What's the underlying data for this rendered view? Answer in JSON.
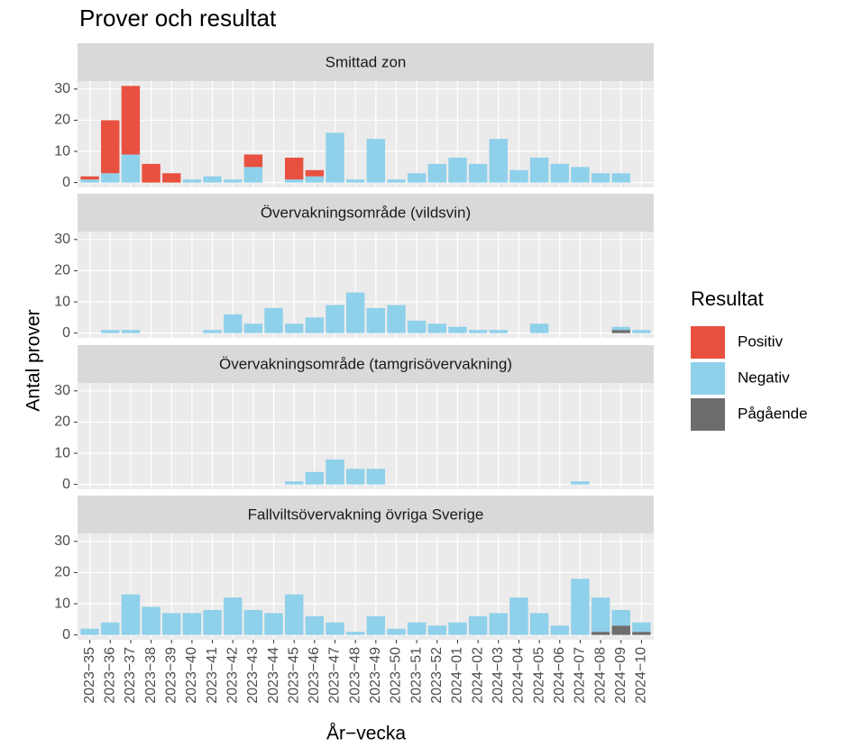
{
  "title": "Prover och resultat",
  "y_label": "Antal prover",
  "legend_title": "Resultat",
  "chart_data": [
    {
      "type": "bar",
      "stacked": true,
      "title": "Smittad zon",
      "ylim": [
        -1.55,
        32.55
      ],
      "yticks": [
        0,
        10,
        20,
        30
      ],
      "grid": true,
      "series": [
        {
          "name": "Positiv",
          "color": "#e8513f",
          "values": [
            1,
            17,
            22,
            6,
            3,
            0,
            0,
            0,
            4,
            0,
            7,
            2,
            0,
            0,
            0,
            0,
            0,
            0,
            0,
            0,
            0,
            0,
            0,
            0,
            0,
            0,
            0,
            0
          ]
        },
        {
          "name": "Negativ",
          "color": "#8fd0ea",
          "values": [
            1,
            3,
            9,
            0,
            0,
            1,
            2,
            1,
            5,
            0,
            1,
            2,
            16,
            1,
            14,
            1,
            3,
            6,
            8,
            6,
            14,
            4,
            8,
            6,
            5,
            3,
            3,
            0
          ]
        },
        {
          "name": "Pågående",
          "color": "#6d6d6d",
          "values": [
            0,
            0,
            0,
            0,
            0,
            0,
            0,
            0,
            0,
            0,
            0,
            0,
            0,
            0,
            0,
            0,
            0,
            0,
            0,
            0,
            0,
            0,
            0,
            0,
            0,
            0,
            0,
            0
          ]
        }
      ]
    },
    {
      "type": "bar",
      "stacked": true,
      "title": "Övervakningsområde (vildsvin)",
      "ylim": [
        -1.55,
        32.55
      ],
      "yticks": [
        0,
        10,
        20,
        30
      ],
      "grid": true,
      "series": [
        {
          "name": "Positiv",
          "color": "#e8513f",
          "values": [
            0,
            0,
            0,
            0,
            0,
            0,
            0,
            0,
            0,
            0,
            0,
            0,
            0,
            0,
            0,
            0,
            0,
            0,
            0,
            0,
            0,
            0,
            0,
            0,
            0,
            0,
            0,
            0
          ]
        },
        {
          "name": "Negativ",
          "color": "#8fd0ea",
          "values": [
            0,
            1,
            1,
            0,
            0,
            0,
            1,
            6,
            3,
            8,
            3,
            5,
            9,
            13,
            8,
            9,
            4,
            3,
            2,
            1,
            1,
            0,
            3,
            0,
            0,
            0,
            1,
            1
          ]
        },
        {
          "name": "Pågående",
          "color": "#6d6d6d",
          "values": [
            0,
            0,
            0,
            0,
            0,
            0,
            0,
            0,
            0,
            0,
            0,
            0,
            0,
            0,
            0,
            0,
            0,
            0,
            0,
            0,
            0,
            0,
            0,
            0,
            0,
            0,
            1,
            0
          ]
        }
      ]
    },
    {
      "type": "bar",
      "stacked": true,
      "title": "Övervakningsområde (tamgrisövervakning)",
      "ylim": [
        -1.55,
        32.55
      ],
      "yticks": [
        0,
        10,
        20,
        30
      ],
      "grid": true,
      "series": [
        {
          "name": "Positiv",
          "color": "#e8513f",
          "values": [
            0,
            0,
            0,
            0,
            0,
            0,
            0,
            0,
            0,
            0,
            0,
            0,
            0,
            0,
            0,
            0,
            0,
            0,
            0,
            0,
            0,
            0,
            0,
            0,
            0,
            0,
            0,
            0
          ]
        },
        {
          "name": "Negativ",
          "color": "#8fd0ea",
          "values": [
            0,
            0,
            0,
            0,
            0,
            0,
            0,
            0,
            0,
            0,
            1,
            4,
            8,
            5,
            5,
            0,
            0,
            0,
            0,
            0,
            0,
            0,
            0,
            0,
            1,
            0,
            0,
            0
          ]
        },
        {
          "name": "Pågående",
          "color": "#6d6d6d",
          "values": [
            0,
            0,
            0,
            0,
            0,
            0,
            0,
            0,
            0,
            0,
            0,
            0,
            0,
            0,
            0,
            0,
            0,
            0,
            0,
            0,
            0,
            0,
            0,
            0,
            0,
            0,
            0,
            0
          ]
        }
      ]
    },
    {
      "type": "bar",
      "stacked": true,
      "title": "Fallviltsövervakning övriga Sverige",
      "x_label": "År−vecka",
      "categories": [
        "2023−35",
        "2023−36",
        "2023−37",
        "2023−38",
        "2023−39",
        "2023−40",
        "2023−41",
        "2023−42",
        "2023−43",
        "2023−44",
        "2023−45",
        "2023−46",
        "2023−47",
        "2023−48",
        "2023−49",
        "2023−50",
        "2023−51",
        "2023−52",
        "2024−01",
        "2024−02",
        "2024−03",
        "2024−04",
        "2024−05",
        "2024−06",
        "2024−07",
        "2024−08",
        "2024−09",
        "2024−10"
      ],
      "ylim": [
        -1.55,
        32.55
      ],
      "yticks": [
        0,
        10,
        20,
        30
      ],
      "grid": true,
      "series": [
        {
          "name": "Positiv",
          "color": "#e8513f",
          "values": [
            0,
            0,
            0,
            0,
            0,
            0,
            0,
            0,
            0,
            0,
            0,
            0,
            0,
            0,
            0,
            0,
            0,
            0,
            0,
            0,
            0,
            0,
            0,
            0,
            0,
            0,
            0,
            0
          ]
        },
        {
          "name": "Negativ",
          "color": "#8fd0ea",
          "values": [
            2,
            4,
            13,
            9,
            7,
            7,
            8,
            12,
            8,
            7,
            13,
            6,
            4,
            1,
            6,
            2,
            4,
            3,
            4,
            6,
            7,
            12,
            7,
            3,
            18,
            11,
            5,
            3
          ]
        },
        {
          "name": "Pågående",
          "color": "#6d6d6d",
          "values": [
            0,
            0,
            0,
            0,
            0,
            0,
            0,
            0,
            0,
            0,
            0,
            0,
            0,
            0,
            0,
            0,
            0,
            0,
            0,
            0,
            0,
            0,
            0,
            0,
            0,
            1,
            3,
            1
          ]
        }
      ]
    }
  ]
}
